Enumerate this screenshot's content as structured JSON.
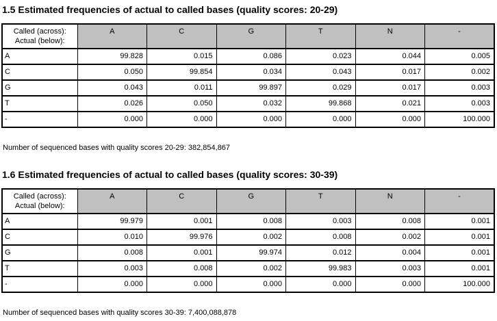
{
  "colors": {
    "header_bg": "#c0c0c0",
    "border": "#000000",
    "background": "#ffffff",
    "text": "#000000"
  },
  "sections": [
    {
      "title": "1.5 Estimated frequencies of actual to called bases (quality scores: 20-29)",
      "table": {
        "corner_line1": "Called (across):",
        "corner_line2": "Actual (below):",
        "columns": [
          "A",
          "C",
          "G",
          "T",
          "N",
          "-"
        ],
        "rows": [
          {
            "label": "A",
            "values": [
              "99.828",
              "0.015",
              "0.086",
              "0.023",
              "0.044",
              "0.005"
            ]
          },
          {
            "label": "C",
            "values": [
              "0.050",
              "99.854",
              "0.034",
              "0.043",
              "0.017",
              "0.002"
            ]
          },
          {
            "label": "G",
            "values": [
              "0.043",
              "0.011",
              "99.897",
              "0.029",
              "0.017",
              "0.003"
            ]
          },
          {
            "label": "T",
            "values": [
              "0.026",
              "0.050",
              "0.032",
              "99.868",
              "0.021",
              "0.003"
            ]
          },
          {
            "label": "-",
            "values": [
              "0.000",
              "0.000",
              "0.000",
              "0.000",
              "0.000",
              "100.000"
            ]
          }
        ]
      },
      "footer": "Number of sequenced bases with quality scores 20-29: 382,854,867"
    },
    {
      "title": "1.6 Estimated frequencies of actual to called bases (quality scores: 30-39)",
      "table": {
        "corner_line1": "Called (across):",
        "corner_line2": "Actual (below):",
        "columns": [
          "A",
          "C",
          "G",
          "T",
          "N",
          "-"
        ],
        "rows": [
          {
            "label": "A",
            "values": [
              "99.979",
              "0.001",
              "0.008",
              "0.003",
              "0.008",
              "0.001"
            ]
          },
          {
            "label": "C",
            "values": [
              "0.010",
              "99.976",
              "0.002",
              "0.008",
              "0.002",
              "0.001"
            ]
          },
          {
            "label": "G",
            "values": [
              "0.008",
              "0.001",
              "99.974",
              "0.012",
              "0.004",
              "0.001"
            ]
          },
          {
            "label": "T",
            "values": [
              "0.003",
              "0.008",
              "0.002",
              "99.983",
              "0.003",
              "0.001"
            ]
          },
          {
            "label": "-",
            "values": [
              "0.000",
              "0.000",
              "0.000",
              "0.000",
              "0.000",
              "100.000"
            ]
          }
        ]
      },
      "footer": "Number of sequenced bases with quality scores 30-39: 7,400,088,878"
    }
  ]
}
